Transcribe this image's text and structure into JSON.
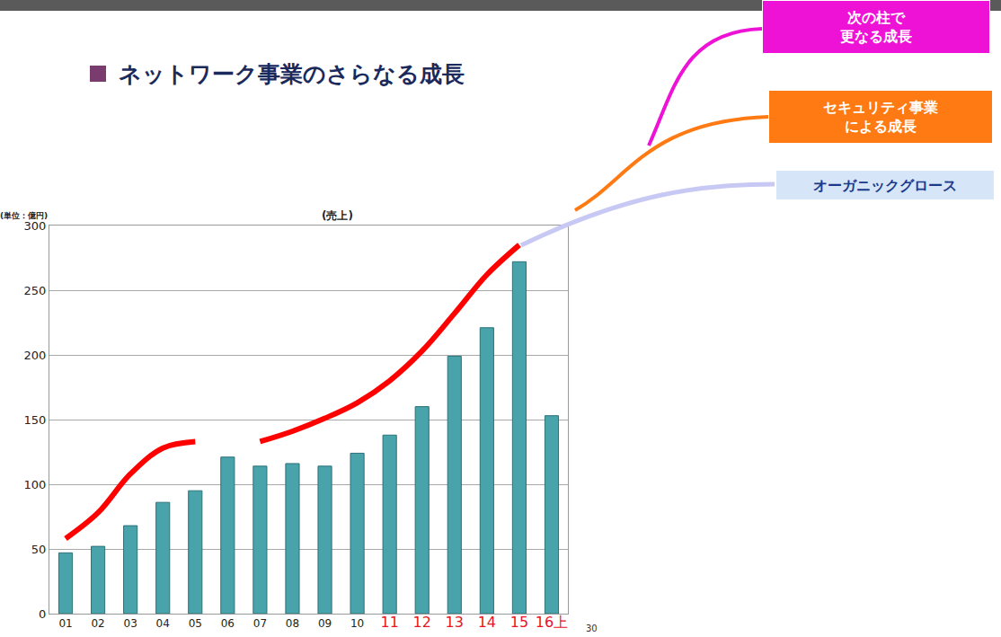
{
  "chart_data": {
    "type": "bar",
    "title": "ネットワーク事業のさらなる成長",
    "subtitle": "(売上)",
    "ylabel": "(単位：億円)",
    "categories": [
      "01",
      "02",
      "03",
      "04",
      "05",
      "06",
      "07",
      "08",
      "09",
      "10",
      "11",
      "12",
      "13",
      "14",
      "15",
      "16上"
    ],
    "series": [
      {
        "type": "bar",
        "color": "#48a3ab",
        "values": [
          47,
          52,
          68,
          86,
          95,
          121,
          114,
          116,
          114,
          124,
          138,
          160,
          199,
          221,
          272,
          153
        ]
      },
      {
        "type": "line",
        "color": "#ff0000",
        "values": [
          58,
          78,
          108,
          128,
          133,
          null,
          133,
          141,
          151,
          163,
          180,
          203,
          232,
          262,
          285,
          null
        ]
      }
    ],
    "ylim": [
      0,
      300
    ],
    "yticks": [
      0,
      50,
      100,
      150,
      200,
      250,
      300
    ],
    "grid": true,
    "annotations": [
      "次の柱で\n更なる成長",
      "セキュリティ事業\nによる成長",
      "オーガニックグロース",
      "30"
    ]
  }
}
